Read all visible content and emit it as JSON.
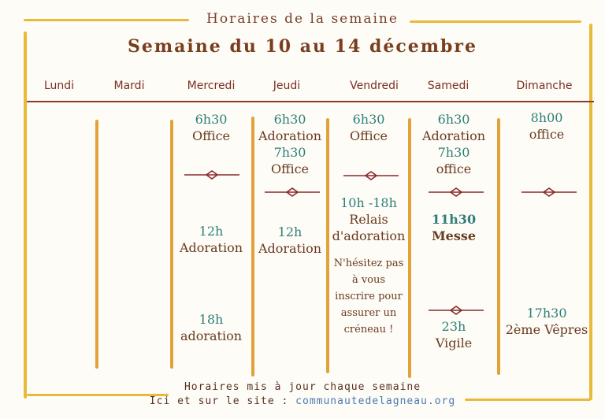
{
  "header": {
    "subtitle": "Horaires de la semaine",
    "title": "Semaine du 10 au 14 décembre"
  },
  "days": [
    "Lundi",
    "Mardi",
    "Mercredi",
    "Jeudi",
    "Vendredi",
    "Samedi",
    "Dimanche"
  ],
  "schedule": {
    "mercredi": {
      "e1_time": "6h30",
      "e1_label": "Office",
      "e2_time": "12h",
      "e2_label": "Adoration",
      "e3_time": "18h",
      "e3_label": "adoration"
    },
    "jeudi": {
      "e1_time": "6h30",
      "e1_label": "Adoration",
      "e2_time": "7h30",
      "e2_label": "Office",
      "e3_time": "12h",
      "e3_label": "Adoration"
    },
    "vendredi": {
      "e1_time": "6h30",
      "e1_label": "Office",
      "e2_time": "10h -18h",
      "e2_label_1": "Relais",
      "e2_label_2": "d'adoration",
      "note_lines": [
        "N'hésitez pas",
        "à vous",
        "inscrire pour",
        "assurer un",
        "créneau !"
      ]
    },
    "samedi": {
      "e1_time": "6h30",
      "e1_label": "Adoration",
      "e2_time": "7h30",
      "e2_label": "office",
      "e3_time": "11h30",
      "e3_label": "Messe",
      "e4_time": "23h",
      "e4_label": "Vigile"
    },
    "dimanche": {
      "e1_time": "8h00",
      "e1_label": "office",
      "e2_time": "17h30",
      "e2_label": "2ème Vêpres"
    }
  },
  "footer": {
    "line1": "Horaires mis à jour chaque semaine",
    "line2_prefix": "Ici et sur le site : ",
    "site": "communautedelagneau.org"
  },
  "colors": {
    "frame": "#e9b93a",
    "time": "#2f7e78",
    "activity": "#6a3a1e",
    "ornament": "#8a2a2a"
  }
}
